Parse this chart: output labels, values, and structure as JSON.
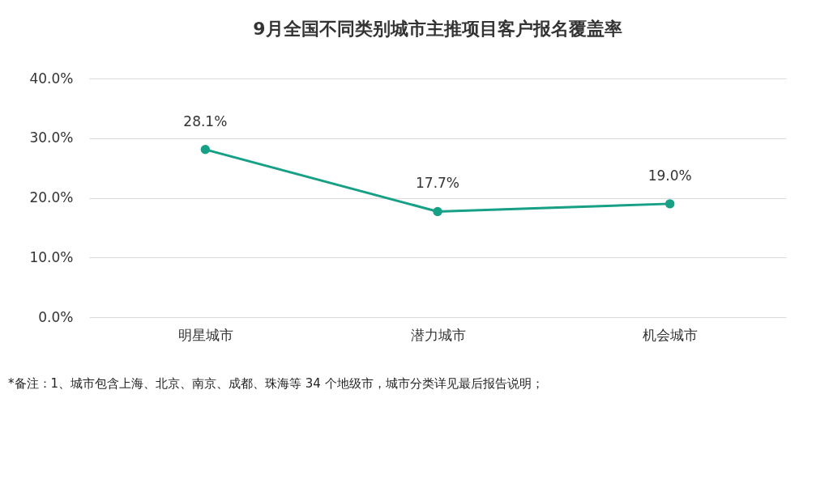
{
  "chart_data": {
    "type": "line",
    "title": "9月全国不同类别城市主推项目客户报名覆盖率",
    "categories": [
      "明星城市",
      "潜力城市",
      "机会城市"
    ],
    "series": [
      {
        "color": "#16a085",
        "values": [
          28.1,
          17.7,
          19.0
        ],
        "value_labels": [
          "28.1%",
          "17.7%",
          "19.0%"
        ]
      }
    ],
    "ylim": [
      0,
      40
    ],
    "yticks": [
      {
        "value": 0,
        "label": "0.0%"
      },
      {
        "value": 10,
        "label": "10.0%"
      },
      {
        "value": 20,
        "label": "20.0%"
      },
      {
        "value": 30,
        "label": "30.0%"
      },
      {
        "value": 40,
        "label": "40.0%"
      }
    ],
    "grid": "y",
    "marker": "circle",
    "line_style": "solid",
    "annotations": [
      "*备注：1、城市包含上海、北京、南京、成都、珠海等 34 个地级市，城市分类详见最后报告说明；"
    ]
  }
}
